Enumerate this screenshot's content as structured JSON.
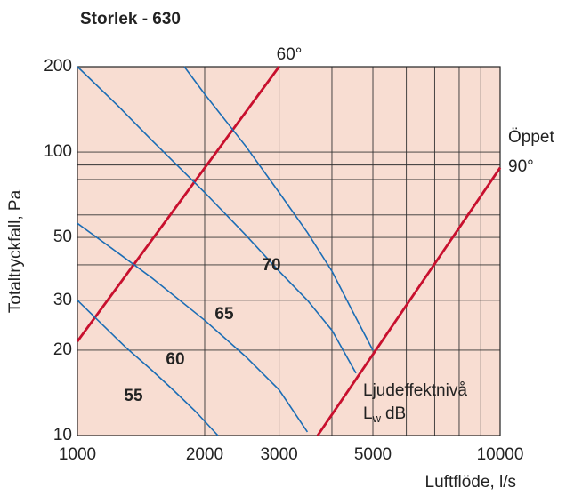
{
  "chart_data": {
    "type": "line",
    "title": "Storlek - 630",
    "xlabel": "Luftflöde, l/s",
    "ylabel": "Totaltryckfall, Pa",
    "xlog": true,
    "ylog": true,
    "xlim": [
      1000,
      10000
    ],
    "ylim": [
      10,
      200
    ],
    "xticks": [
      1000,
      2000,
      3000,
      5000,
      10000
    ],
    "xminor": [
      4000,
      6000,
      7000,
      8000,
      9000
    ],
    "yticks": [
      10,
      20,
      30,
      50,
      100,
      200
    ],
    "yminor": [
      40,
      60,
      70,
      80,
      90
    ],
    "grid": true,
    "background": "#f8ddd2",
    "series": [
      {
        "name": "60°",
        "color": "#c8102e",
        "x": [
          1000,
          3000
        ],
        "values": [
          21.5,
          200
        ]
      },
      {
        "label": [
          "Öppet",
          "90°"
        ],
        "color": "#c8102e",
        "x": [
          3700,
          10000
        ],
        "values": [
          10,
          88
        ]
      },
      {
        "name": "55",
        "color": "#1b6db5",
        "x": [
          1000,
          1150,
          1300,
          1500,
          1700,
          1900,
          2150
        ],
        "values": [
          30,
          24.5,
          20.5,
          17,
          14.3,
          12.2,
          10
        ]
      },
      {
        "name": "60",
        "color": "#1b6db5",
        "x": [
          1000,
          1250,
          1500,
          2000,
          2500,
          3000,
          3500
        ],
        "values": [
          56,
          44,
          36,
          25.5,
          19,
          14.5,
          10.3
        ]
      },
      {
        "name": "65",
        "color": "#1b6db5",
        "x": [
          1000,
          1250,
          1500,
          2000,
          2500,
          3000,
          3500,
          4000,
          4560
        ],
        "values": [
          200,
          145,
          110,
          72,
          51,
          38,
          30,
          23.5,
          16.6
        ]
      },
      {
        "name": "70",
        "color": "#1b6db5",
        "x": [
          1790,
          2000,
          2500,
          3000,
          3500,
          4000,
          4500,
          5000
        ],
        "values": [
          200,
          160,
          105,
          72,
          52,
          38,
          27,
          20
        ]
      }
    ],
    "annotation": {
      "text": "Ljudeffektnivå",
      "symbol": "L",
      "subscript": "w",
      "unit": "dB",
      "color": "#1b6db5"
    }
  }
}
